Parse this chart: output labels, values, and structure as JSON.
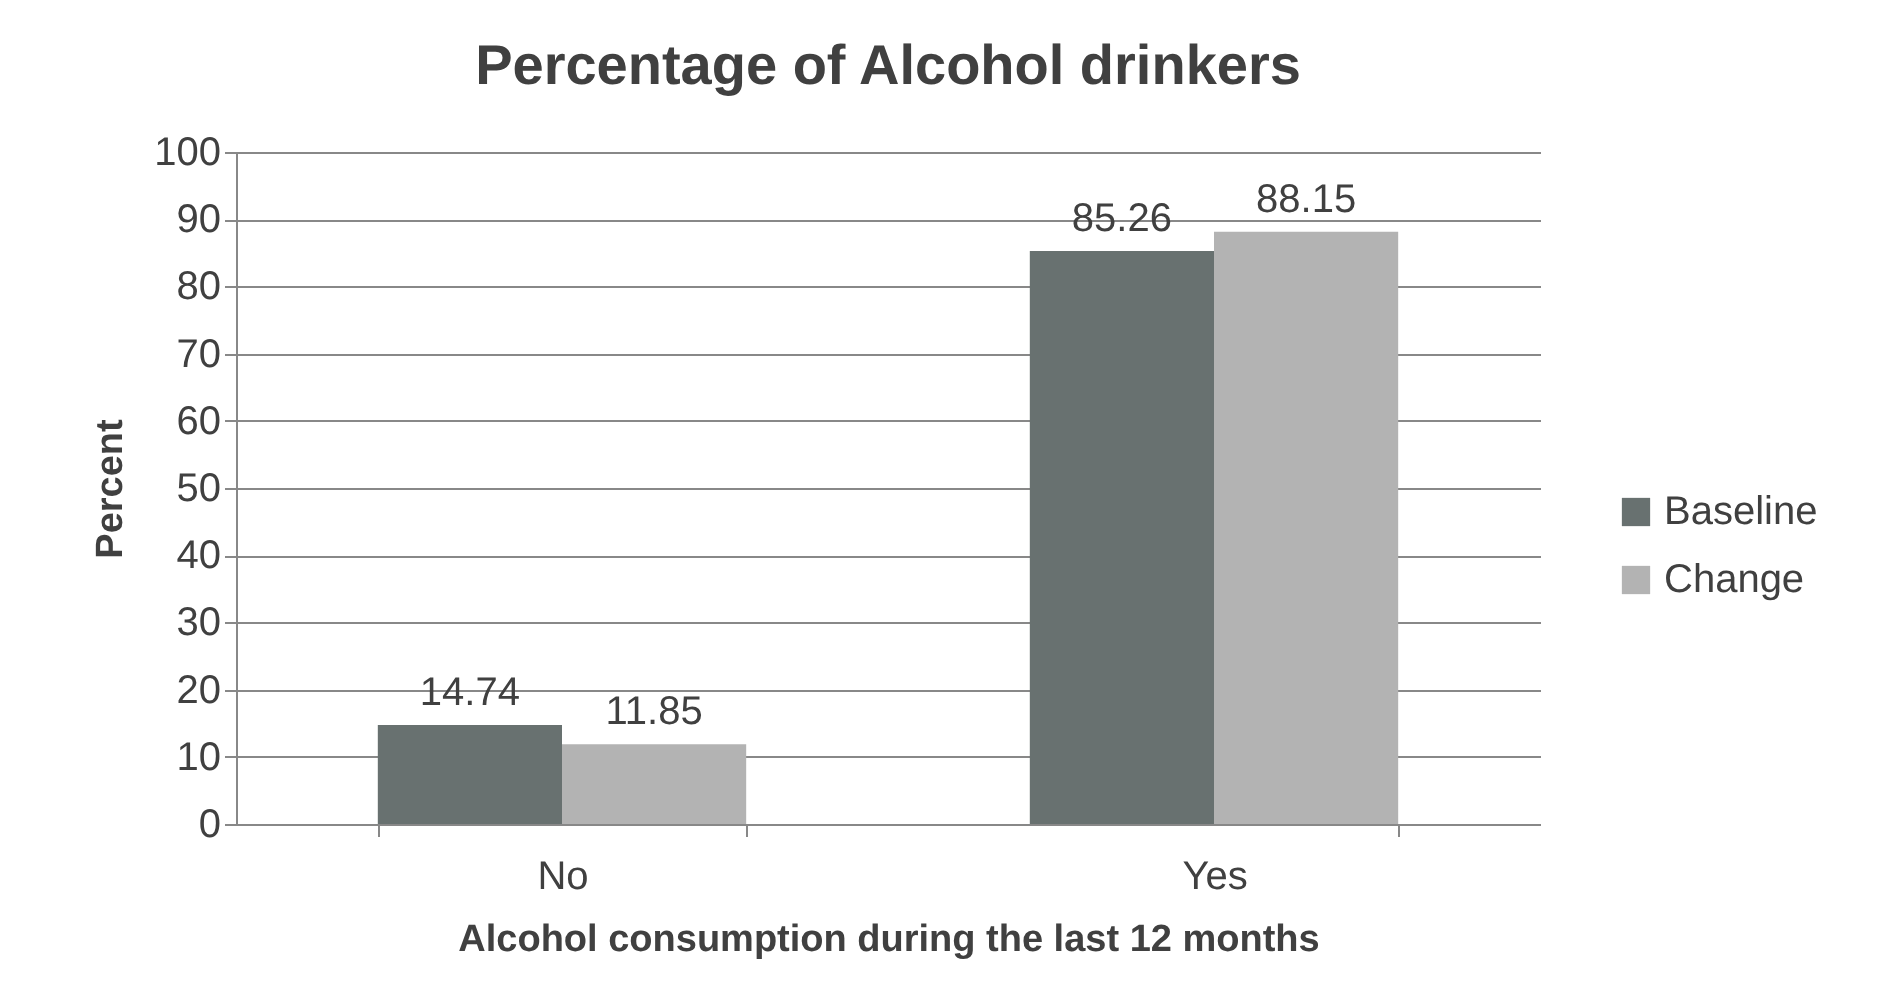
{
  "chart_data": {
    "type": "bar",
    "title": "Percentage of Alcohol drinkers",
    "xlabel": "Alcohol consumption during the last 12 months",
    "ylabel": "Percent",
    "categories": [
      "No",
      "Yes"
    ],
    "series": [
      {
        "name": "Baseline",
        "color": "#687170",
        "values": [
          14.74,
          85.26
        ]
      },
      {
        "name": "Change",
        "color": "#b3b3b3",
        "values": [
          11.85,
          88.15
        ]
      }
    ],
    "ylim": [
      0,
      100
    ],
    "yticks": [
      0,
      10,
      20,
      30,
      40,
      50,
      60,
      70,
      80,
      90,
      100
    ],
    "grid": "y",
    "legend": "right",
    "data_labels": true
  }
}
